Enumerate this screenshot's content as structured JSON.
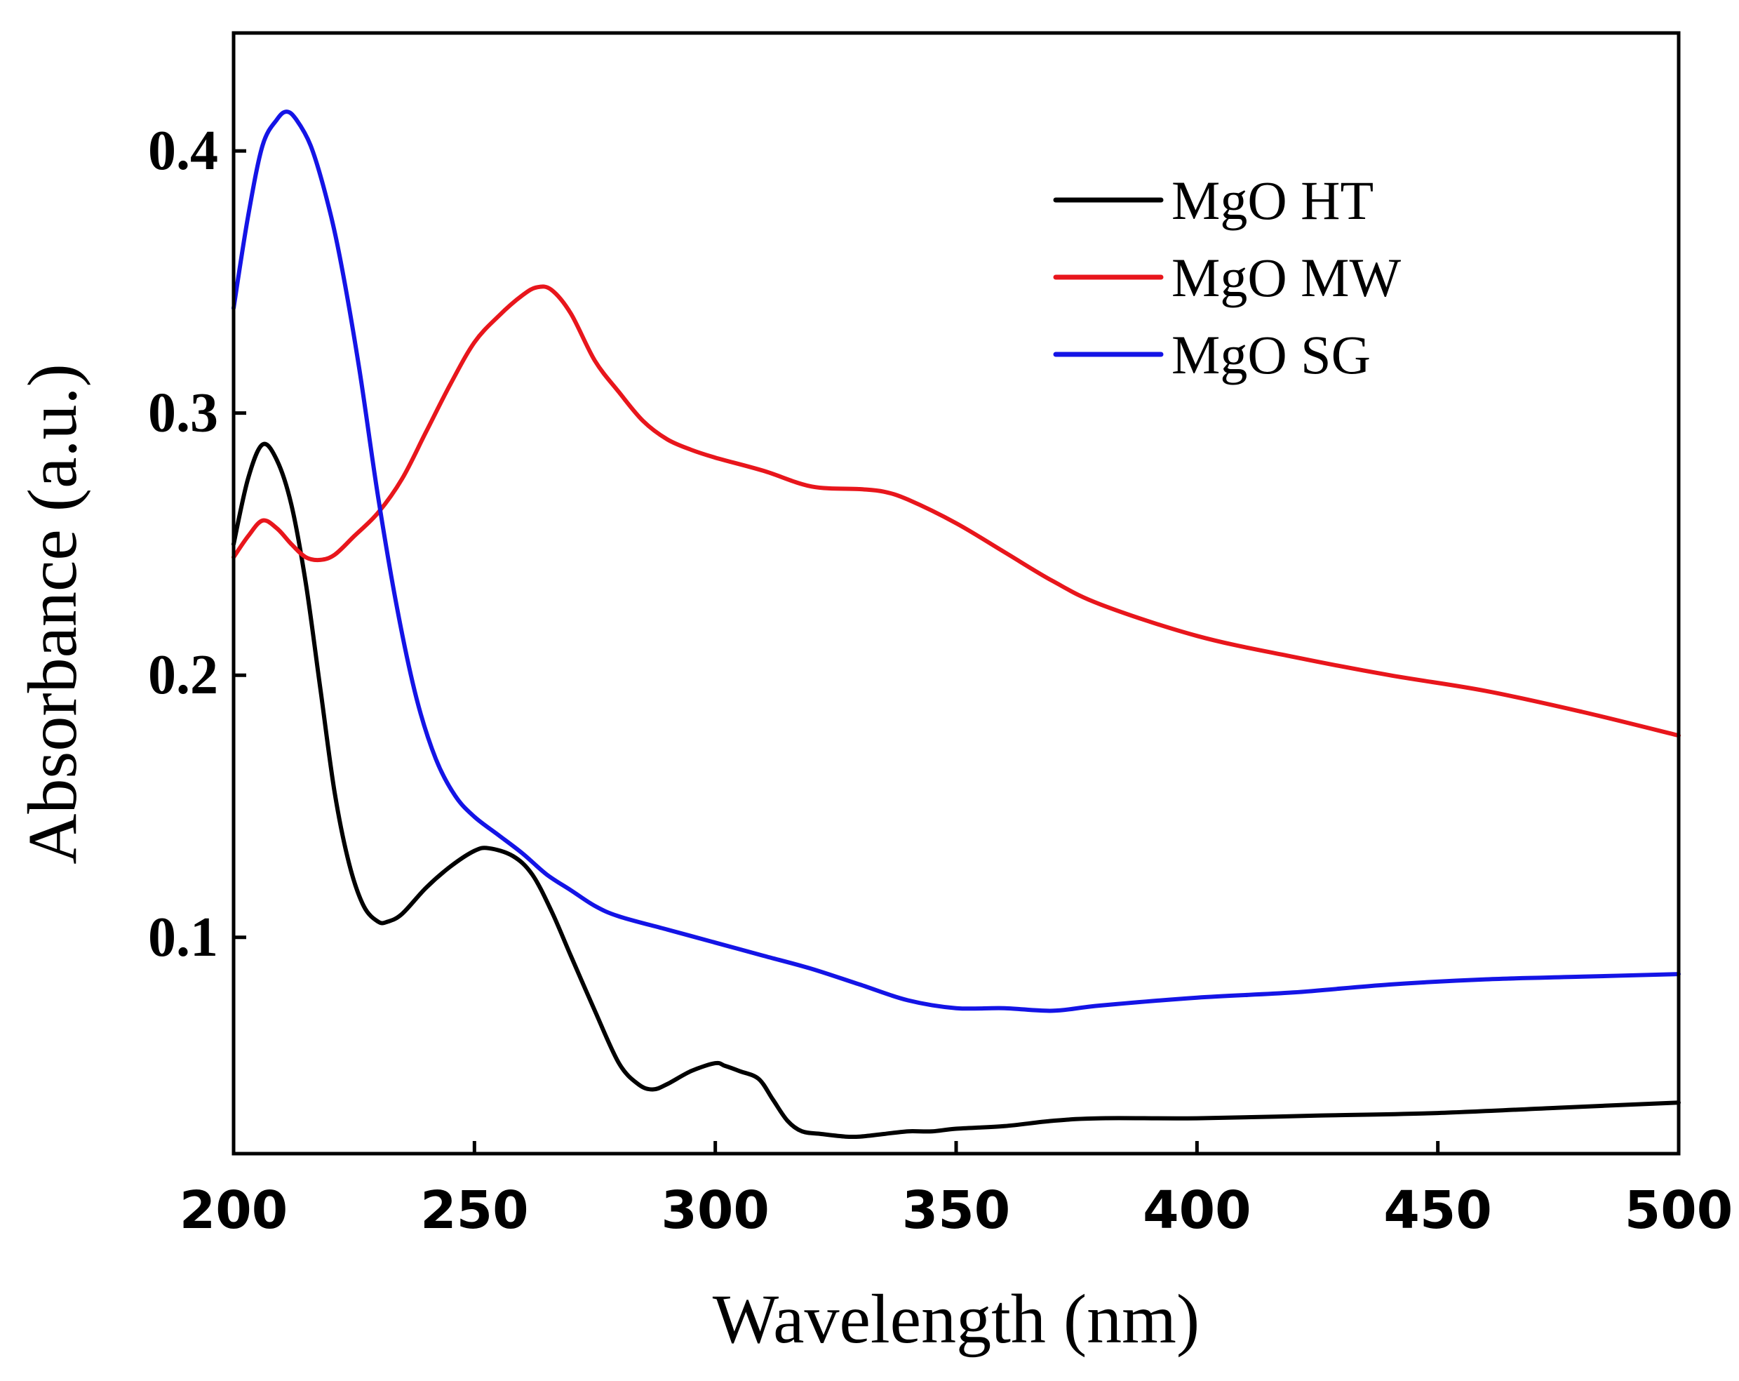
{
  "chart_data": {
    "type": "line",
    "title": "",
    "xlabel": "Wavelength (nm)",
    "ylabel": "Absorbance (a.u.)",
    "xlim": [
      200,
      500
    ],
    "ylim": [
      0.0175,
      0.445
    ],
    "xticks": [
      200,
      250,
      300,
      350,
      400,
      450,
      500
    ],
    "xtick_labels": [
      "200",
      "250",
      "300",
      "350",
      "400",
      "450",
      "500"
    ],
    "yticks": [
      0.1,
      0.2,
      0.3,
      0.4
    ],
    "ytick_labels": [
      "0.1",
      "0.2",
      "0.3",
      "0.4"
    ],
    "grid": false,
    "legend_position": "top-right",
    "series": [
      {
        "name": "MgO HT",
        "color": "#000000",
        "x": [
          200,
          203,
          206,
          209,
          212,
          215,
          218,
          221,
          224,
          227,
          230,
          232,
          235,
          240,
          245,
          250,
          253,
          258,
          262,
          266,
          270,
          275,
          280,
          284,
          287,
          290,
          295,
          300,
          302,
          305,
          309,
          312,
          315,
          318,
          322,
          327,
          330,
          335,
          340,
          345,
          350,
          360,
          370,
          380,
          400,
          425,
          450,
          475,
          500
        ],
        "y": [
          0.25,
          0.275,
          0.288,
          0.282,
          0.265,
          0.235,
          0.195,
          0.155,
          0.128,
          0.112,
          0.106,
          0.106,
          0.109,
          0.119,
          0.127,
          0.133,
          0.134,
          0.131,
          0.124,
          0.11,
          0.093,
          0.072,
          0.052,
          0.044,
          0.042,
          0.044,
          0.049,
          0.052,
          0.051,
          0.049,
          0.046,
          0.038,
          0.03,
          0.026,
          0.025,
          0.024,
          0.024,
          0.025,
          0.026,
          0.026,
          0.027,
          0.028,
          0.03,
          0.031,
          0.031,
          0.032,
          0.033,
          0.035,
          0.037
        ]
      },
      {
        "name": "MgO MW",
        "color": "#e8161c",
        "x": [
          200,
          203,
          206,
          209,
          212,
          215,
          218,
          221,
          225,
          230,
          235,
          240,
          245,
          250,
          255,
          260,
          263,
          266,
          270,
          275,
          280,
          285,
          290,
          295,
          300,
          310,
          320,
          330,
          335,
          340,
          350,
          360,
          370,
          380,
          400,
          420,
          440,
          460,
          480,
          500
        ],
        "y": [
          0.245,
          0.253,
          0.259,
          0.256,
          0.25,
          0.245,
          0.244,
          0.246,
          0.253,
          0.262,
          0.275,
          0.293,
          0.311,
          0.327,
          0.337,
          0.345,
          0.348,
          0.347,
          0.338,
          0.32,
          0.308,
          0.297,
          0.29,
          0.286,
          0.283,
          0.278,
          0.272,
          0.271,
          0.27,
          0.267,
          0.258,
          0.247,
          0.236,
          0.227,
          0.215,
          0.207,
          0.2,
          0.194,
          0.186,
          0.177
        ]
      },
      {
        "name": "MgO SG",
        "color": "#1414e6",
        "x": [
          200,
          203,
          206,
          209,
          211,
          213,
          216,
          219,
          222,
          226,
          230,
          234,
          238,
          242,
          246,
          250,
          255,
          260,
          265,
          270,
          275,
          280,
          290,
          300,
          310,
          320,
          330,
          340,
          350,
          360,
          370,
          380,
          400,
          420,
          440,
          460,
          480,
          500
        ],
        "y": [
          0.34,
          0.375,
          0.402,
          0.412,
          0.415,
          0.412,
          0.402,
          0.384,
          0.36,
          0.318,
          0.268,
          0.225,
          0.191,
          0.168,
          0.154,
          0.146,
          0.139,
          0.132,
          0.124,
          0.118,
          0.112,
          0.108,
          0.103,
          0.098,
          0.093,
          0.088,
          0.082,
          0.076,
          0.073,
          0.073,
          0.072,
          0.074,
          0.077,
          0.079,
          0.082,
          0.084,
          0.085,
          0.086
        ]
      }
    ]
  }
}
